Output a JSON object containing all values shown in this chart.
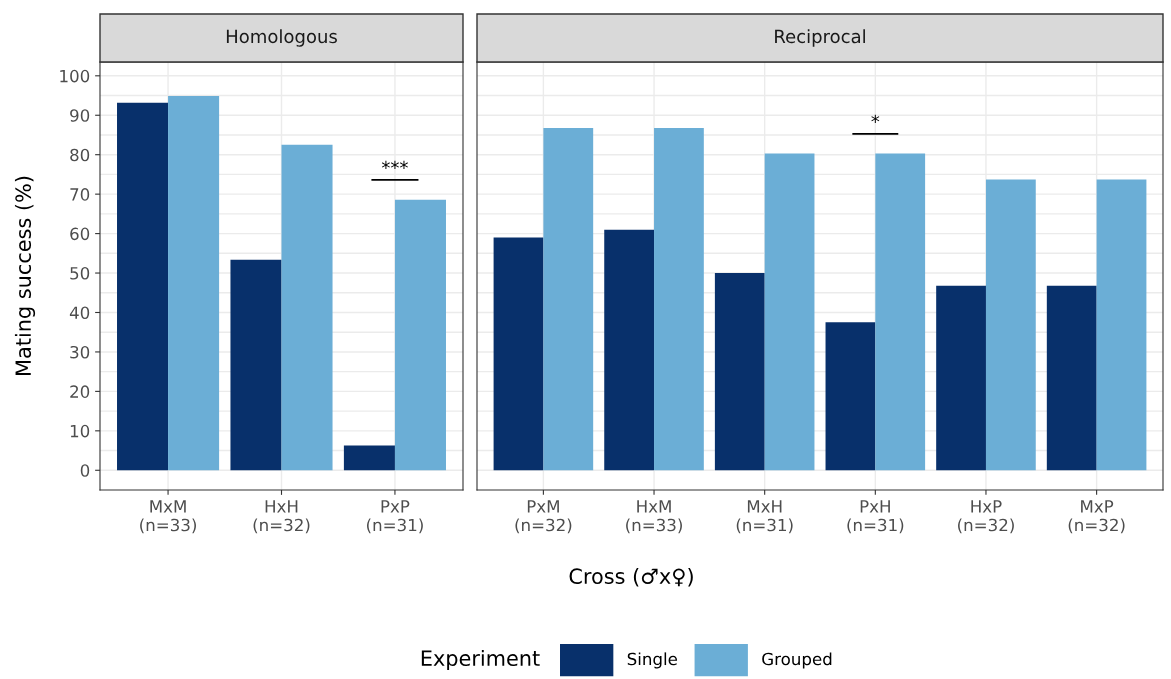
{
  "chart_data": [
    {
      "type": "bar",
      "title": "Homologous",
      "xlabel": "Cross (♂x♀)",
      "ylabel": "Mating success (%)",
      "legend_title": "Experiment",
      "legend": "bottom",
      "grid": true,
      "categories": [
        "MxM\n(n=33)",
        "HxH\n(n=32)",
        "PxP\n(n=31)"
      ],
      "series": [
        {
          "name": "Single",
          "color": "#08306b",
          "values": [
            93.2,
            53.4,
            6.3
          ]
        },
        {
          "name": "Grouped",
          "color": "#6baed6",
          "values": [
            94.9,
            82.5,
            68.6
          ]
        }
      ],
      "ylim": [
        -5,
        103.5
      ],
      "yticks": [
        0,
        10,
        20,
        30,
        40,
        50,
        60,
        70,
        80,
        90,
        100
      ],
      "annotations": [
        "***"
      ]
    },
    {
      "type": "bar",
      "title": "Reciprocal",
      "grid": true,
      "tick_labels": "x",
      "categories": [
        "PxM\n(n=32)",
        "HxM\n(n=33)",
        "MxH\n(n=31)",
        "PxH\n(n=31)",
        "HxP\n(n=32)",
        "MxP\n(n=32)"
      ],
      "series": [
        {
          "name": "Single",
          "color": "#08306b",
          "values": [
            59.0,
            61.0,
            50.0,
            37.5,
            46.8,
            46.8
          ]
        },
        {
          "name": "Grouped",
          "color": "#6baed6",
          "values": [
            86.8,
            86.8,
            80.3,
            80.3,
            73.7,
            73.7
          ]
        }
      ],
      "ylim": [
        -5,
        103.5
      ],
      "yticks": [
        0,
        10,
        20,
        30,
        40,
        50,
        60,
        70,
        80,
        90,
        100
      ],
      "annotations": [
        "*"
      ]
    }
  ]
}
